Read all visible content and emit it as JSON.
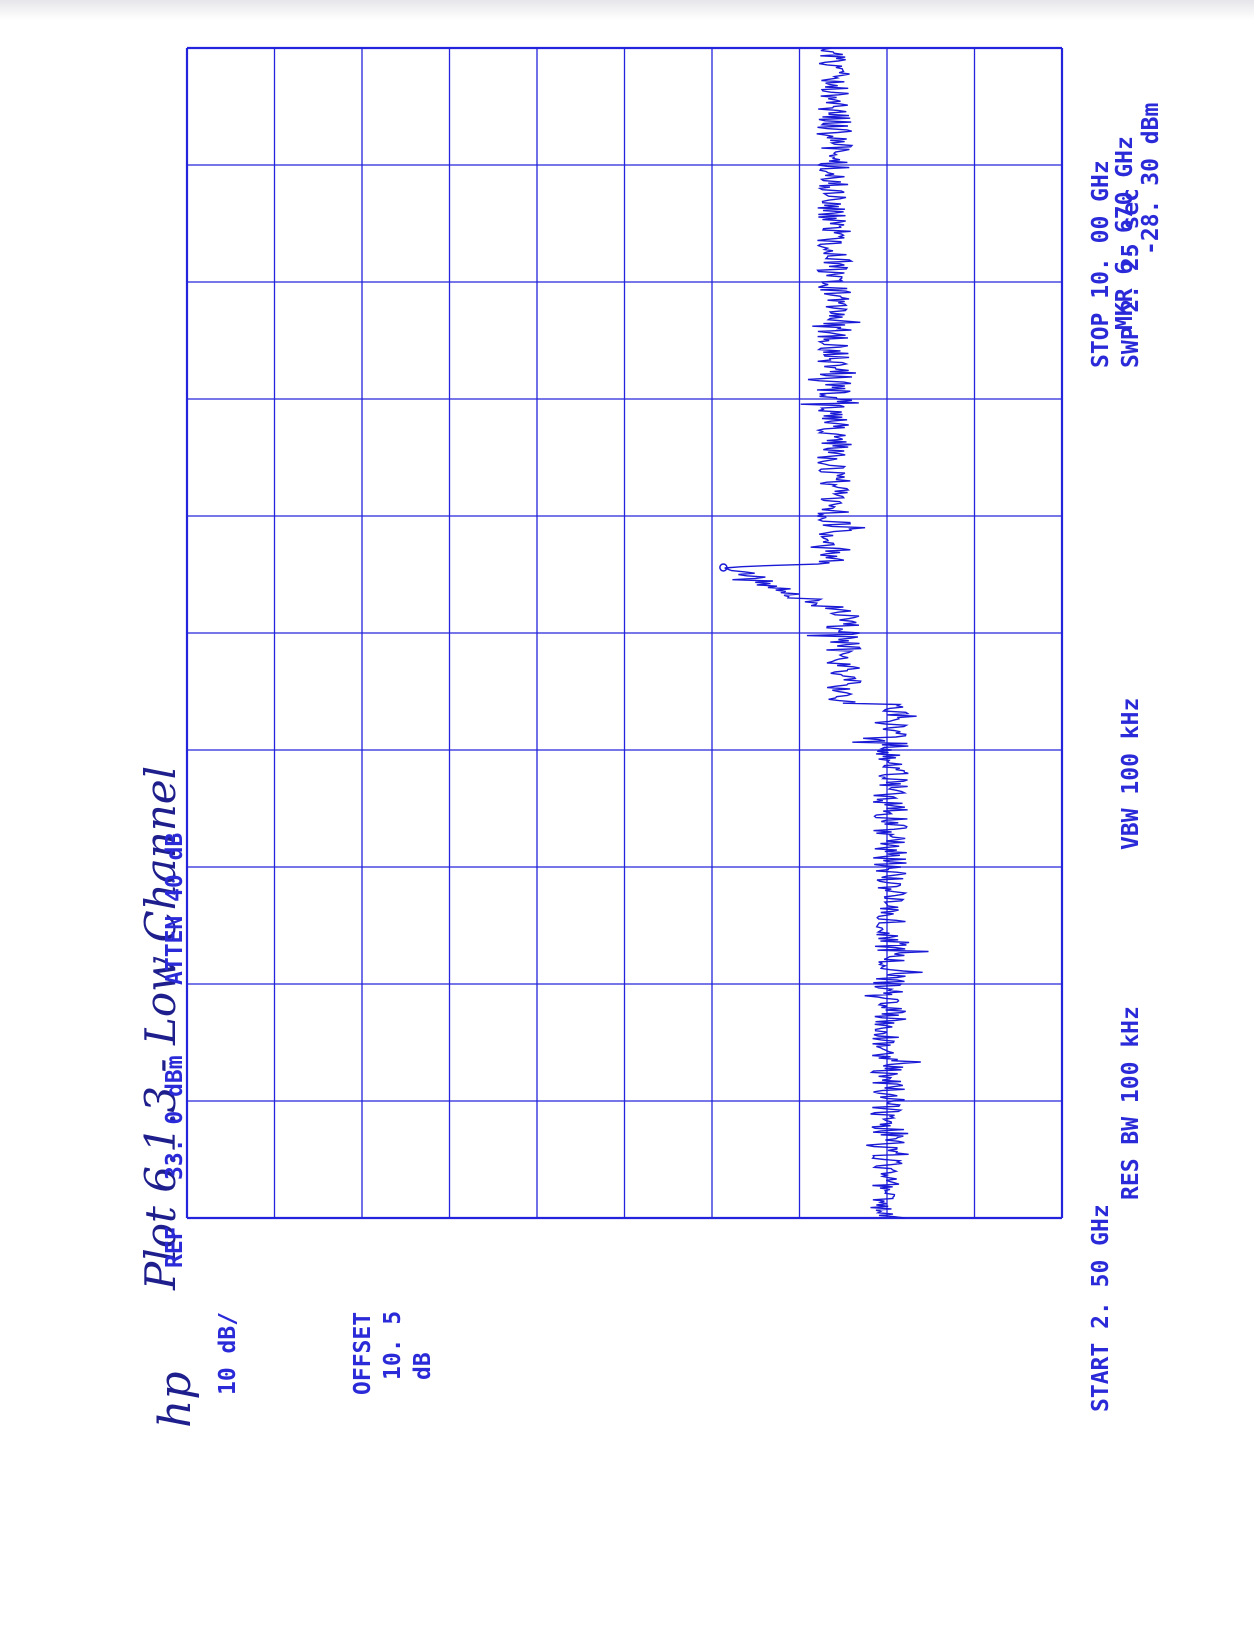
{
  "handwritten": {
    "title": "Plot 6.1.3 - Low Channel",
    "logo": "hp"
  },
  "annotations": {
    "ref_label": "REF",
    "ref_value": "33. 0  dBm",
    "atten": "ATTEN  40  dB",
    "scale": "10  dB/",
    "offset_label": "OFFSET",
    "offset_value": "10. 5",
    "offset_unit": "dB",
    "marker_freq": "MKR  6. 670  GHz",
    "marker_level": "-28. 30  dBm",
    "start": "START  2. 50  GHz",
    "stop": "STOP  10. 00  GHz",
    "res_bw": "RES  BW   100  kHz",
    "vbw": "VBW  100  kHz",
    "sweep": "SWP  2. 25   sec"
  },
  "colors": {
    "trace": "#1a1ad6",
    "grid": "#2424dc",
    "text": "#2a2ad8",
    "ink": "#1e1e8c"
  },
  "chart_data": {
    "type": "line",
    "orientation": "rotated-90-ccw",
    "x_unit": "GHz",
    "y_unit": "dBm",
    "xlim": [
      2.5,
      10.0
    ],
    "ylim": [
      -67.0,
      33.0
    ],
    "grid": true,
    "divisions": {
      "x": 10,
      "y": 10
    },
    "marker": {
      "x": 6.67,
      "y": -28.3
    },
    "series": [
      {
        "x": [
          2.5,
          5.79,
          5.8,
          6.38,
          6.42,
          6.67,
          6.7,
          10.0
        ],
        "y": [
          -47.0,
          -47.5,
          -42.0,
          -42.0,
          -40.0,
          -28.3,
          -41.0,
          -41.0
        ]
      }
    ]
  }
}
